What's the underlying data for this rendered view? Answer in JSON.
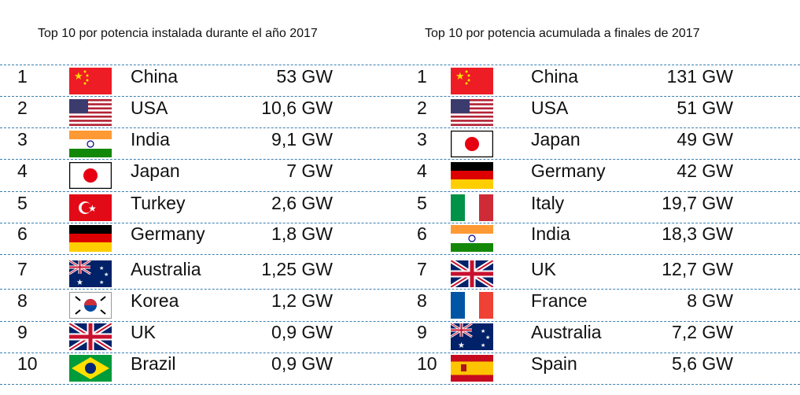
{
  "left": {
    "title": "Top 10 por potencia instalada durante el año 2017",
    "rows": [
      {
        "rank": "1",
        "flag": "china",
        "country": "China",
        "value": "53 GW"
      },
      {
        "rank": "2",
        "flag": "usa",
        "country": "USA",
        "value": "10,6 GW"
      },
      {
        "rank": "3",
        "flag": "india",
        "country": "India",
        "value": "9,1 GW"
      },
      {
        "rank": "4",
        "flag": "japan",
        "country": "Japan",
        "value": "7 GW"
      },
      {
        "rank": "5",
        "flag": "turkey",
        "country": "Turkey",
        "value": "2,6 GW"
      },
      {
        "rank": "6",
        "flag": "germany",
        "country": "Germany",
        "value": "1,8 GW"
      },
      {
        "rank": "7",
        "flag": "australia",
        "country": "Australia",
        "value": "1,25 GW"
      },
      {
        "rank": "8",
        "flag": "korea",
        "country": "Korea",
        "value": "1,2 GW"
      },
      {
        "rank": "9",
        "flag": "uk",
        "country": "UK",
        "value": "0,9 GW"
      },
      {
        "rank": "10",
        "flag": "brazil",
        "country": "Brazil",
        "value": "0,9 GW"
      }
    ]
  },
  "right": {
    "title": "Top 10 por potencia acumulada a finales de 2017",
    "rows": [
      {
        "rank": "1",
        "flag": "china",
        "country": "China",
        "value": "131 GW"
      },
      {
        "rank": "2",
        "flag": "usa",
        "country": "USA",
        "value": "51 GW"
      },
      {
        "rank": "3",
        "flag": "japan",
        "country": "Japan",
        "value": "49 GW"
      },
      {
        "rank": "4",
        "flag": "germany",
        "country": "Germany",
        "value": "42 GW"
      },
      {
        "rank": "5",
        "flag": "italy",
        "country": "Italy",
        "value": "19,7 GW"
      },
      {
        "rank": "6",
        "flag": "india",
        "country": "India",
        "value": "18,3 GW"
      },
      {
        "rank": "7",
        "flag": "uk",
        "country": "UK",
        "value": "12,7 GW"
      },
      {
        "rank": "8",
        "flag": "france",
        "country": "France",
        "value": "8 GW"
      },
      {
        "rank": "9",
        "flag": "australia",
        "country": "Australia",
        "value": "7,2 GW"
      },
      {
        "rank": "10",
        "flag": "spain",
        "country": "Spain",
        "value": "5,6 GW"
      }
    ]
  },
  "colors": {
    "divider": "#3a7fb0"
  }
}
